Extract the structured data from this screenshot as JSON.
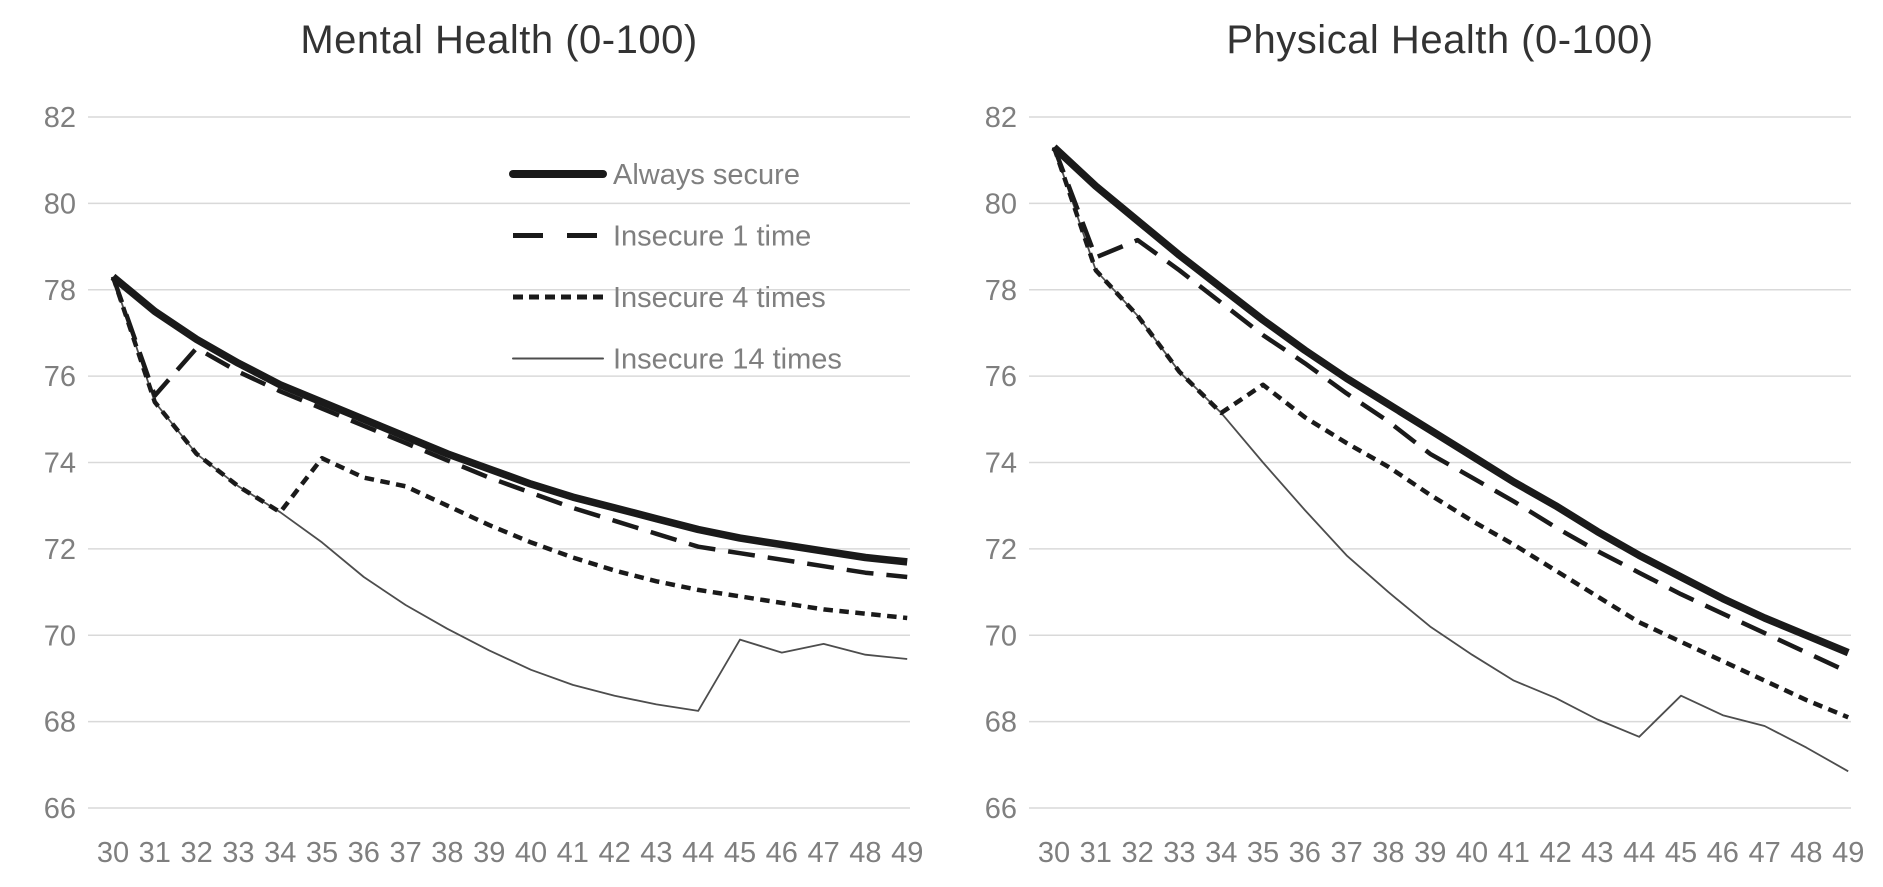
{
  "page": {
    "background": "#ffffff"
  },
  "colors": {
    "line_black": "#1a1a1a",
    "line_thin": "#4d4d4d",
    "gridline": "#d9d9d9",
    "tick_label": "#7f7f7f",
    "title": "#333333",
    "legend_text": "#7f7f7f"
  },
  "chart_data": [
    {
      "type": "line",
      "title": "Mental Health (0-100)",
      "xlabel": "",
      "ylabel": "",
      "x": [
        30,
        31,
        32,
        33,
        34,
        35,
        36,
        37,
        38,
        39,
        40,
        41,
        42,
        43,
        44,
        45,
        46,
        47,
        48,
        49
      ],
      "ylim": [
        66,
        82
      ],
      "yticks": [
        66,
        68,
        70,
        72,
        74,
        76,
        78,
        80,
        82
      ],
      "grid": true,
      "show_legend": true,
      "legend_position": "inside-top-right",
      "series": [
        {
          "name": "Always secure",
          "style": "thick-solid",
          "values": [
            78.3,
            77.5,
            76.85,
            76.3,
            75.8,
            75.4,
            75.0,
            74.6,
            74.2,
            73.85,
            73.5,
            73.2,
            72.95,
            72.7,
            72.45,
            72.25,
            72.1,
            71.95,
            71.8,
            71.7
          ]
        },
        {
          "name": "Insecure 1 time",
          "style": "long-dash",
          "values": [
            78.3,
            75.55,
            76.65,
            76.1,
            75.65,
            75.25,
            74.85,
            74.45,
            74.05,
            73.65,
            73.3,
            72.95,
            72.65,
            72.35,
            72.05,
            71.9,
            71.75,
            71.6,
            71.45,
            71.35
          ]
        },
        {
          "name": "Insecure 4 times",
          "style": "short-dash",
          "values": [
            78.3,
            75.4,
            74.2,
            73.45,
            72.85,
            74.1,
            73.65,
            73.45,
            73.0,
            72.55,
            72.15,
            71.8,
            71.5,
            71.25,
            71.05,
            70.9,
            70.75,
            70.6,
            70.5,
            70.4
          ]
        },
        {
          "name": "Insecure 14 times",
          "style": "thin-solid",
          "values": [
            78.3,
            75.4,
            74.2,
            73.45,
            72.85,
            72.15,
            71.35,
            70.7,
            70.15,
            69.65,
            69.2,
            68.85,
            68.6,
            68.4,
            68.25,
            69.9,
            69.6,
            69.8,
            69.55,
            69.45
          ]
        }
      ]
    },
    {
      "type": "line",
      "title": "Physical Health (0-100)",
      "xlabel": "",
      "ylabel": "",
      "x": [
        30,
        31,
        32,
        33,
        34,
        35,
        36,
        37,
        38,
        39,
        40,
        41,
        42,
        43,
        44,
        45,
        46,
        47,
        48,
        49
      ],
      "ylim": [
        66,
        82
      ],
      "yticks": [
        66,
        68,
        70,
        72,
        74,
        76,
        78,
        80,
        82
      ],
      "grid": true,
      "show_legend": false,
      "legend_position": "none",
      "series": [
        {
          "name": "Always secure",
          "style": "thick-solid",
          "values": [
            81.3,
            80.4,
            79.6,
            78.8,
            78.05,
            77.3,
            76.6,
            75.95,
            75.35,
            74.75,
            74.15,
            73.55,
            73.0,
            72.4,
            71.85,
            71.35,
            70.85,
            70.4,
            70.0,
            69.6
          ]
        },
        {
          "name": "Insecure 1 time",
          "style": "long-dash",
          "values": [
            81.3,
            78.75,
            79.15,
            78.45,
            77.7,
            76.95,
            76.3,
            75.6,
            74.95,
            74.2,
            73.65,
            73.1,
            72.5,
            71.95,
            71.45,
            70.95,
            70.5,
            70.05,
            69.6,
            69.15
          ]
        },
        {
          "name": "Insecure 4 times",
          "style": "short-dash",
          "values": [
            81.3,
            78.45,
            77.4,
            76.1,
            75.15,
            75.8,
            75.05,
            74.45,
            73.9,
            73.25,
            72.65,
            72.1,
            71.5,
            70.9,
            70.3,
            69.85,
            69.4,
            68.95,
            68.5,
            68.1
          ]
        },
        {
          "name": "Insecure 14 times",
          "style": "thin-solid",
          "values": [
            81.3,
            78.45,
            77.4,
            76.1,
            75.15,
            74.0,
            72.9,
            71.85,
            71.0,
            70.2,
            69.55,
            68.95,
            68.55,
            68.05,
            67.65,
            68.6,
            68.15,
            67.9,
            67.4,
            66.85
          ]
        }
      ]
    }
  ]
}
